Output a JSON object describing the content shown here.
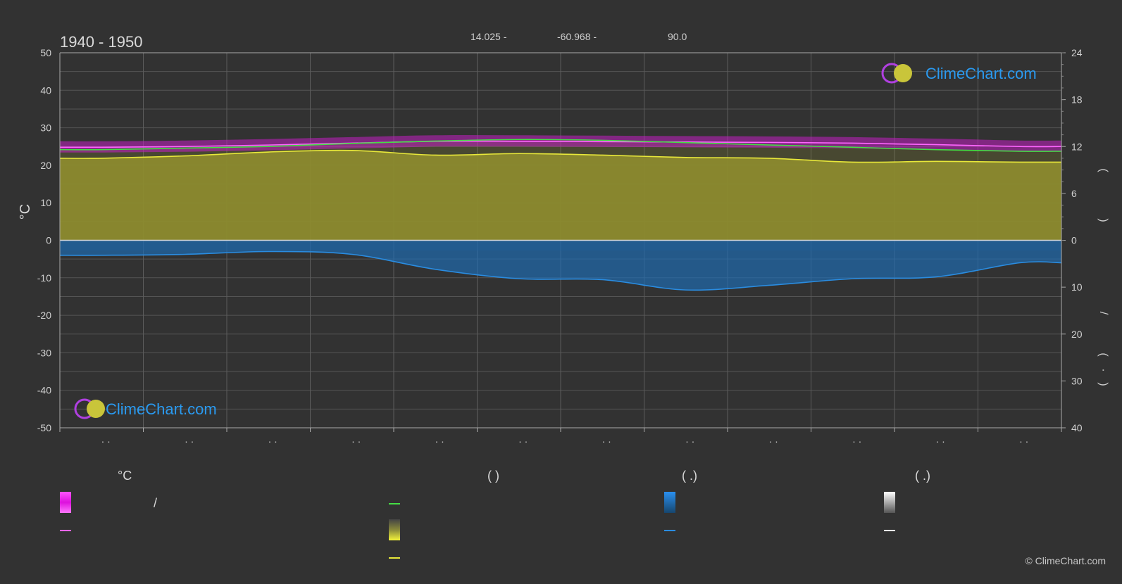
{
  "header": {
    "period": "1940 - 1950",
    "lat": "14.025 -",
    "lon": "-60.968 -",
    "elev": "90.0"
  },
  "watermark": {
    "text": "ClimeChart.com"
  },
  "copyright": "© ClimeChart.com",
  "chart_data": {
    "type": "area",
    "title": "1940 - 1950",
    "ylabel": "°C",
    "ylim": [
      -50,
      50
    ],
    "y2lim_sun": [
      0,
      24
    ],
    "y2lim_precip": [
      0,
      40
    ],
    "y_ticks": [
      50,
      40,
      30,
      20,
      10,
      0,
      -10,
      -20,
      -30,
      -40,
      -50
    ],
    "y2_ticks_sun": [
      24,
      18,
      12,
      6,
      0
    ],
    "y2_ticks_precip": [
      10,
      20,
      30,
      40
    ],
    "y2_labels": [
      "(",
      ")",
      "/",
      "(",
      "·",
      ")"
    ],
    "month_labels": [
      "· ·",
      "· ·",
      "· ·",
      "· ·",
      "· ·",
      "· ·",
      "· ·",
      "· ·",
      "· ·",
      "· ·",
      "· ·",
      "· ·"
    ],
    "grid": true,
    "x": [
      0.5,
      1.5,
      2.5,
      3.5,
      4.5,
      5.5,
      6.5,
      7.5,
      8.5,
      9.5,
      10.5,
      11.5
    ],
    "series": [
      {
        "key": "max_temp",
        "color": "#ff66ff",
        "values": [
          24.8,
          25.0,
          25.4,
          25.9,
          26.4,
          26.4,
          26.3,
          26.2,
          26.1,
          25.9,
          25.5,
          25.0
        ]
      },
      {
        "key": "daylight",
        "color": "#44dd44",
        "values": [
          11.6,
          11.8,
          12.0,
          12.4,
          12.7,
          12.9,
          12.8,
          12.5,
          12.2,
          11.9,
          11.6,
          11.4
        ]
      },
      {
        "key": "sunshine",
        "color": "#e8e83a",
        "values": [
          10.5,
          10.8,
          11.3,
          11.5,
          10.9,
          11.1,
          10.9,
          10.6,
          10.5,
          10.0,
          10.1,
          10.0
        ]
      },
      {
        "key": "precip",
        "color": "#2a8ce0",
        "values": [
          3.2,
          3.0,
          2.4,
          3.0,
          6.2,
          8.2,
          8.4,
          10.6,
          9.6,
          8.2,
          7.8,
          4.8
        ]
      }
    ]
  },
  "legend": {
    "col1": {
      "heading": "°C",
      "slash": "/"
    },
    "col2": {
      "heading": "(           )"
    },
    "col3": {
      "heading": "(    .)"
    },
    "col4": {
      "heading": "(    .)"
    },
    "colors": {
      "temp_band": "#e020e0",
      "max_line": "#ff66ff",
      "daylight_line": "#44dd44",
      "sun_band": "#e8e83a",
      "sun_line": "#e8e83a",
      "precip_band": "#1e7fd8",
      "precip_line": "#2a8ce0",
      "snow_band": "#d8d8d8",
      "snow_line": "#ffffff"
    }
  }
}
